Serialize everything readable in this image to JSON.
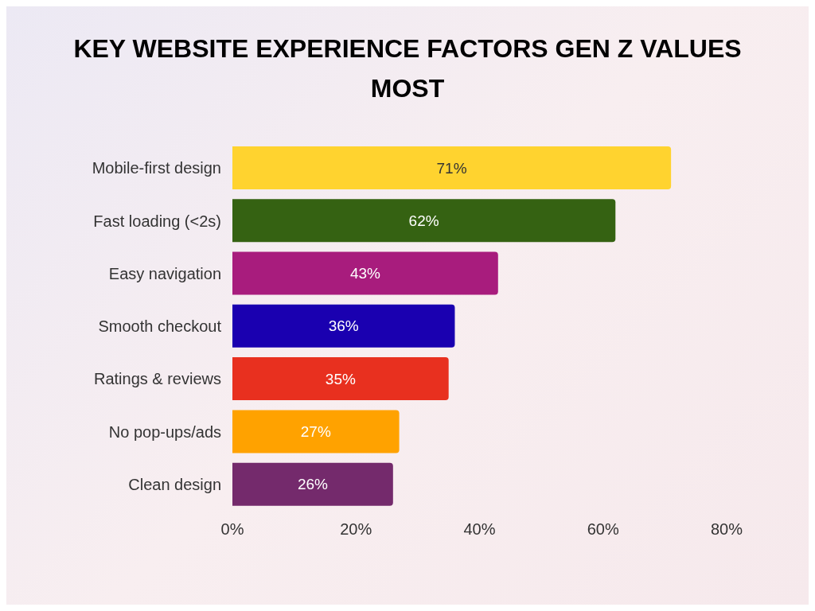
{
  "chart_data": {
    "type": "bar",
    "orientation": "horizontal",
    "title": "KEY WEBSITE EXPERIENCE FACTORS GEN Z VALUES MOST",
    "categories": [
      "Mobile-first design",
      "Fast loading (<2s)",
      "Easy navigation",
      "Smooth checkout",
      "Ratings & reviews",
      "No pop-ups/ads",
      "Clean design"
    ],
    "values": [
      71,
      62,
      43,
      36,
      35,
      27,
      26
    ],
    "colors": [
      "#ffd32f",
      "#356212",
      "#a81c7d",
      "#1a00b0",
      "#e8301f",
      "#ffa200",
      "#742a6c"
    ],
    "value_labels": [
      "71%",
      "62%",
      "43%",
      "36%",
      "35%",
      "27%",
      "26%"
    ],
    "xlim": [
      0,
      80
    ],
    "xticks": [
      {
        "value": 0,
        "label": "0%"
      },
      {
        "value": 20,
        "label": "20%"
      },
      {
        "value": 40,
        "label": "40%"
      },
      {
        "value": 60,
        "label": "60%"
      },
      {
        "value": 80,
        "label": "80%"
      }
    ],
    "grid": false,
    "legend": false
  }
}
